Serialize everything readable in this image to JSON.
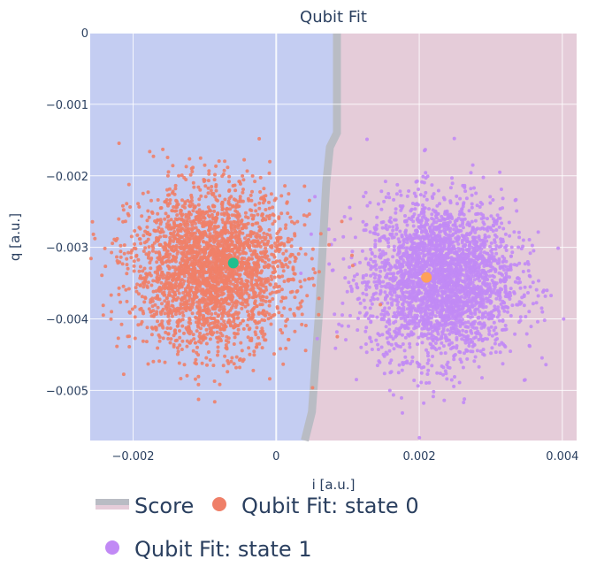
{
  "chart_data": {
    "type": "scatter",
    "title": "Qubit Fit",
    "xlabel": "i [a.u.]",
    "ylabel": "q [a.u.]",
    "xlim": [
      -0.0026,
      0.0042
    ],
    "ylim": [
      -0.0057,
      0.0
    ],
    "x_ticks": [
      {
        "value": -0.002,
        "label": "−0.002"
      },
      {
        "value": 0,
        "label": "0"
      },
      {
        "value": 0.002,
        "label": "0.002"
      },
      {
        "value": 0.004,
        "label": "0.004"
      }
    ],
    "y_ticks": [
      {
        "value": 0,
        "label": "0"
      },
      {
        "value": -0.001,
        "label": "−0.001"
      },
      {
        "value": -0.002,
        "label": "−0.002"
      },
      {
        "value": -0.003,
        "label": "−0.003"
      },
      {
        "value": -0.004,
        "label": "−0.004"
      },
      {
        "value": -0.005,
        "label": "−0.005"
      }
    ],
    "grid": true,
    "legend_position": "bottom",
    "decision_regions": {
      "name": "Score",
      "state0_color": "#c4cdf2",
      "state1_color": "#e5ccd9",
      "boundary_color": "#b9bcc4",
      "boundary": [
        {
          "i": 0.00085,
          "q": 0.0
        },
        {
          "i": 0.00085,
          "q": -0.0014
        },
        {
          "i": 0.00075,
          "q": -0.0016
        },
        {
          "i": 0.0007,
          "q": -0.0021
        },
        {
          "i": 0.00065,
          "q": -0.003
        },
        {
          "i": 0.0006,
          "q": -0.0039
        },
        {
          "i": 0.0005,
          "q": -0.0053
        },
        {
          "i": 0.0004,
          "q": -0.0057
        }
      ]
    },
    "series": [
      {
        "name": "Qubit Fit: state 0",
        "color": "#ef7f68",
        "center": [
          -0.0009,
          -0.0033
        ],
        "spread": [
          0.00055,
          0.00055
        ],
        "count": 2800,
        "fit_point": [
          -0.0006,
          -0.00322
        ],
        "fit_color": "#1fbf8f"
      },
      {
        "name": "Qubit Fit: state 1",
        "color": "#c189f5",
        "center": [
          0.0023,
          -0.00345
        ],
        "spread": [
          0.00052,
          0.00055
        ],
        "count": 3000,
        "fit_point": [
          0.0021,
          -0.00342
        ],
        "fit_color": "#ffa15a"
      }
    ]
  }
}
